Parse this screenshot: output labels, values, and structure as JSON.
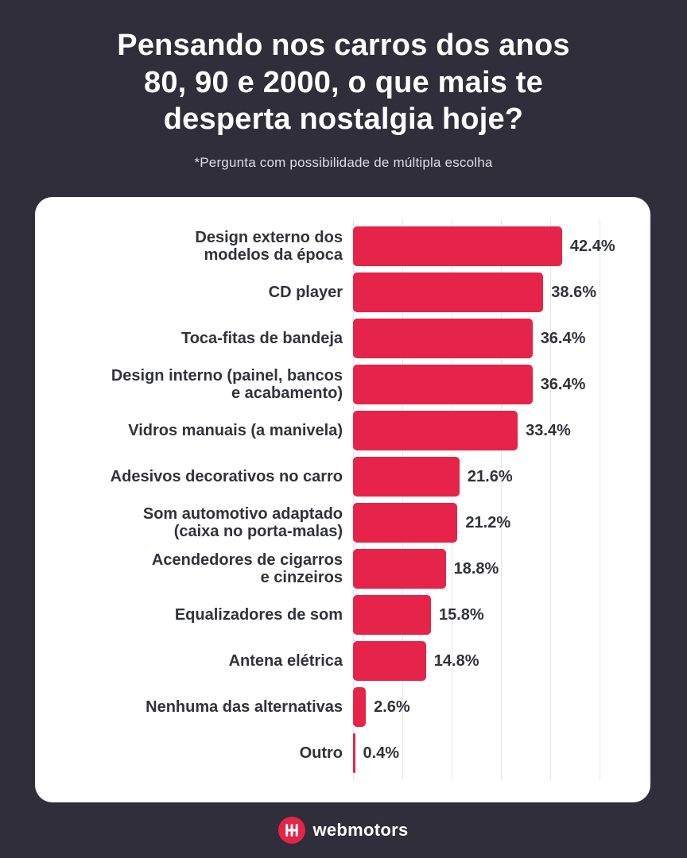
{
  "header": {
    "title": "Pensando nos carros dos anos\n80, 90 e 2000, o que mais te\ndesperta nostalgia hoje?",
    "subtitle": "*Pergunta com possibilidade de múltipla escolha"
  },
  "chart_data": {
    "type": "bar",
    "orientation": "horizontal",
    "title": "Pensando nos carros dos anos 80, 90 e 2000, o que mais te desperta nostalgia hoje?",
    "note": "*Pergunta com possibilidade de múltipla escolha",
    "categories": [
      "Design externo dos\nmodelos da época",
      "CD player",
      "Toca-fitas de bandeja",
      "Design interno (painel, bancos\ne acabamento)",
      "Vidros manuais (a manivela)",
      "Adesivos decorativos no carro",
      "Som automotivo adaptado\n(caixa no porta-malas)",
      "Acendedores de cigarros\ne cinzeiros",
      "Equalizadores de som",
      "Antena elétrica",
      "Nenhuma das alternativas",
      "Outro"
    ],
    "values": [
      42.4,
      38.6,
      36.4,
      36.4,
      33.4,
      21.6,
      21.2,
      18.8,
      15.8,
      14.8,
      2.6,
      0.4
    ],
    "value_labels": [
      "42.4%",
      "38.6%",
      "36.4%",
      "36.4%",
      "33.4%",
      "21.6%",
      "21.2%",
      "18.8%",
      "15.8%",
      "14.8%",
      "2.6%",
      "0.4%"
    ],
    "xlabel": "",
    "ylabel": "",
    "xlim": [
      0,
      60
    ],
    "grid_ticks": [
      0,
      10,
      20,
      30,
      40,
      50,
      60
    ],
    "grid": "vertical, unlabeled gridlines every 10%",
    "legend": "none",
    "bar_color": "#E62348",
    "label_color": "#31323C",
    "gridline_color": "#E6E6EB",
    "card_background": "#FFFFFF",
    "page_background": "#2F2E3A"
  },
  "footer": {
    "brand": "webmotors",
    "logo_color": "#E62348"
  }
}
